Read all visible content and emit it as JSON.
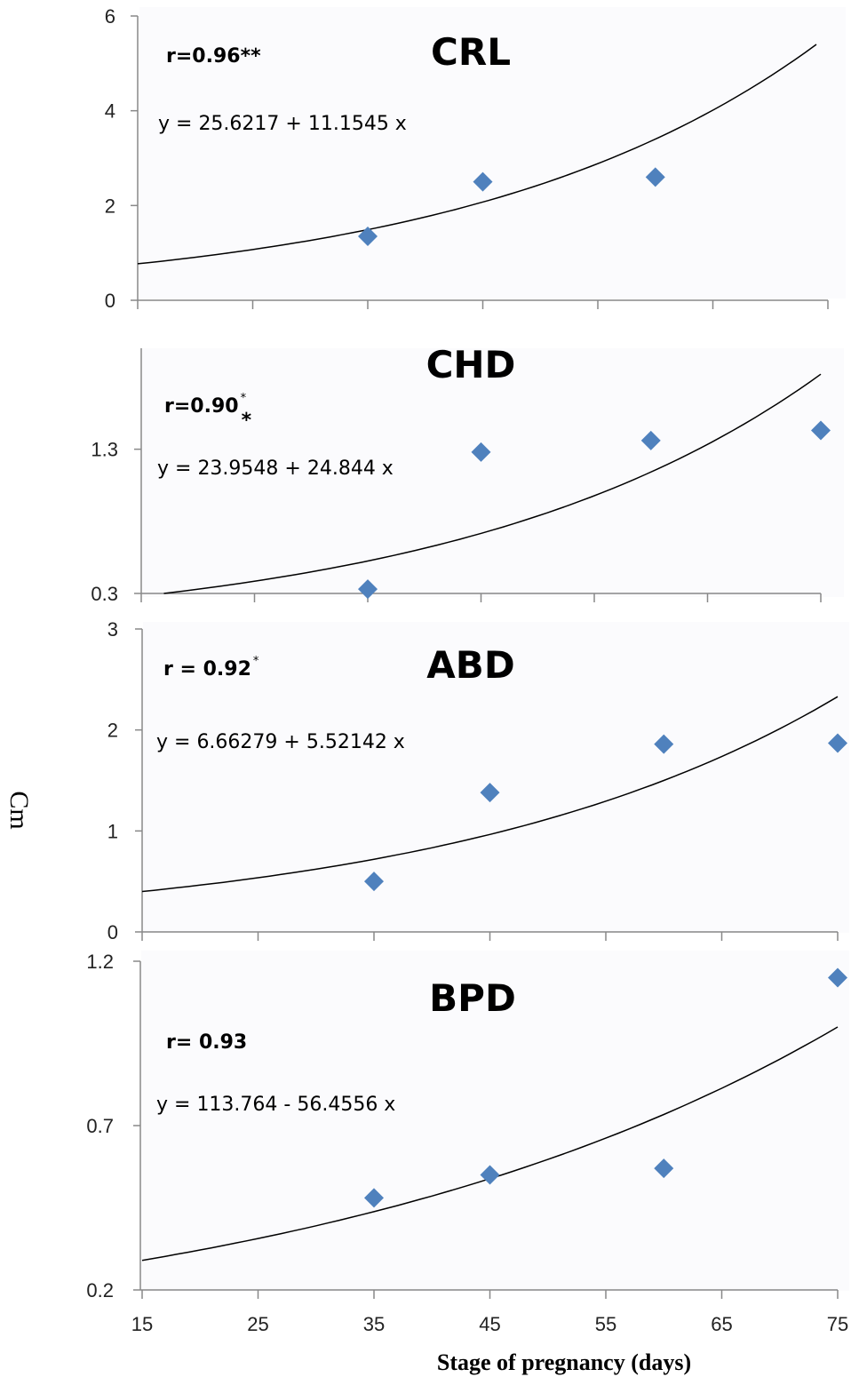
{
  "xlabel": "Stage of pregnancy (days)",
  "ylabel": "Cm",
  "x_ticks": [
    "15",
    "25",
    "35",
    "45",
    "55",
    "65",
    "75"
  ],
  "colors": {
    "marker": "#4F81BD",
    "curve": "#000000",
    "axis": "#888888"
  },
  "chart_data": [
    {
      "type": "scatter",
      "title": "CRL",
      "r_label": "r=0.96**",
      "equation": "y = 25.6217 + 11.1545 x",
      "xlim": [
        15,
        75
      ],
      "ylim": [
        0,
        6
      ],
      "y_ticks": [
        "0",
        "2",
        "4",
        "6"
      ],
      "points": {
        "x": [
          35,
          45,
          60
        ],
        "y": [
          1.35,
          2.5,
          2.6
        ]
      },
      "trend": {
        "type": "exponential",
        "x_range": [
          15,
          74
        ],
        "y_start": 0.77,
        "y_end": 5.4
      }
    },
    {
      "type": "scatter",
      "title": "CHD",
      "r_label": "r=0.90",
      "r_sup": "*",
      "r_sub": "*",
      "equation": "y = 23.9548 + 24.844 x",
      "xlim": [
        15,
        75
      ],
      "ylim": [
        0.3,
        2.0
      ],
      "y_ticks": [
        "1.3",
        "0.3"
      ],
      "y_tick_values": [
        1.3,
        0.3
      ],
      "points": {
        "x": [
          35,
          45,
          60,
          75
        ],
        "y": [
          0.33,
          1.28,
          1.36,
          1.43
        ]
      },
      "trend": {
        "type": "exponential",
        "x_range": [
          17,
          75
        ],
        "y_start": 0.3,
        "y_end": 1.82
      }
    },
    {
      "type": "scatter",
      "title": "ABD",
      "r_label": "r = 0.92",
      "r_sup": "*",
      "equation": "y = 6.66279 + 5.52142 x",
      "xlim": [
        15,
        75
      ],
      "ylim": [
        0,
        3
      ],
      "y_ticks": [
        "0",
        "1",
        "2",
        "3"
      ],
      "points": {
        "x": [
          35,
          45,
          60,
          75
        ],
        "y": [
          0.5,
          1.38,
          1.86,
          1.87
        ]
      },
      "trend": {
        "type": "exponential",
        "x_range": [
          15,
          75
        ],
        "y_start": 0.4,
        "y_end": 2.33
      }
    },
    {
      "type": "scatter",
      "title": "BPD",
      "r_label": "r= 0.93",
      "equation": "y = 113.764 - 56.4556 x",
      "xlim": [
        15,
        75
      ],
      "ylim": [
        0.2,
        1.2
      ],
      "y_ticks": [
        "0.2",
        "0.7",
        "1.2"
      ],
      "points": {
        "x": [
          35,
          45,
          60,
          75
        ],
        "y": [
          0.48,
          0.55,
          0.57,
          1.15
        ]
      },
      "trend": {
        "type": "exponential",
        "x_range": [
          15,
          75
        ],
        "y_start": 0.29,
        "y_end": 1.0
      }
    }
  ]
}
